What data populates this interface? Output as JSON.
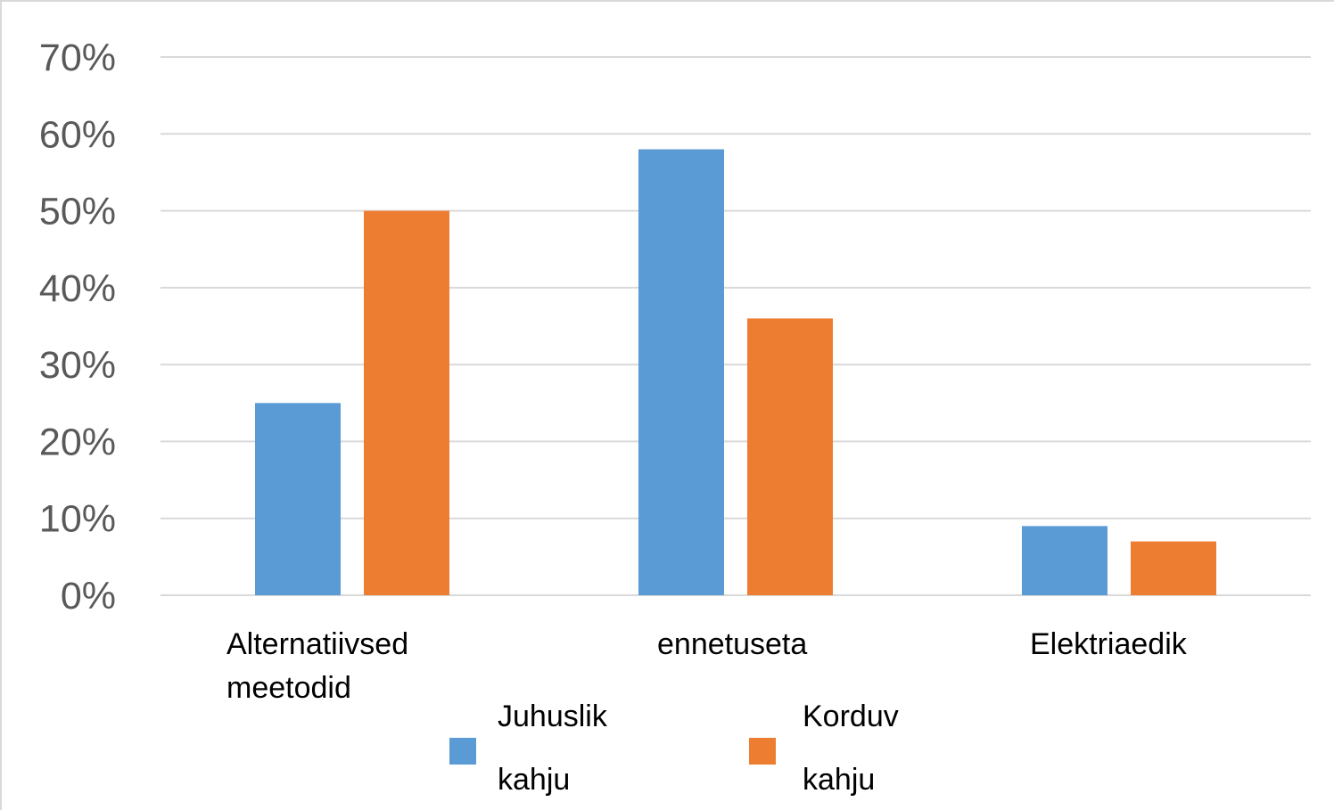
{
  "chart_data": {
    "type": "bar",
    "title": "",
    "xlabel": "",
    "ylabel": "",
    "ylim": [
      0,
      70
    ],
    "y_ticks": [
      "0%",
      "10%",
      "20%",
      "30%",
      "40%",
      "50%",
      "60%",
      "70%"
    ],
    "y_tick_values": [
      0,
      10,
      20,
      30,
      40,
      50,
      60,
      70
    ],
    "grid": true,
    "legend_position": "bottom",
    "categories": [
      [
        "Alternatiivsed",
        "meetodid"
      ],
      [
        "ennetuseta"
      ],
      [
        "Elektriaedik"
      ]
    ],
    "series": [
      {
        "name": [
          "Juhuslik",
          "kahju"
        ],
        "color": "#5B9BD5",
        "values": [
          25,
          58,
          9
        ]
      },
      {
        "name": [
          "Korduv",
          "kahju"
        ],
        "color": "#ED7D31",
        "values": [
          50,
          36,
          7
        ]
      }
    ]
  }
}
